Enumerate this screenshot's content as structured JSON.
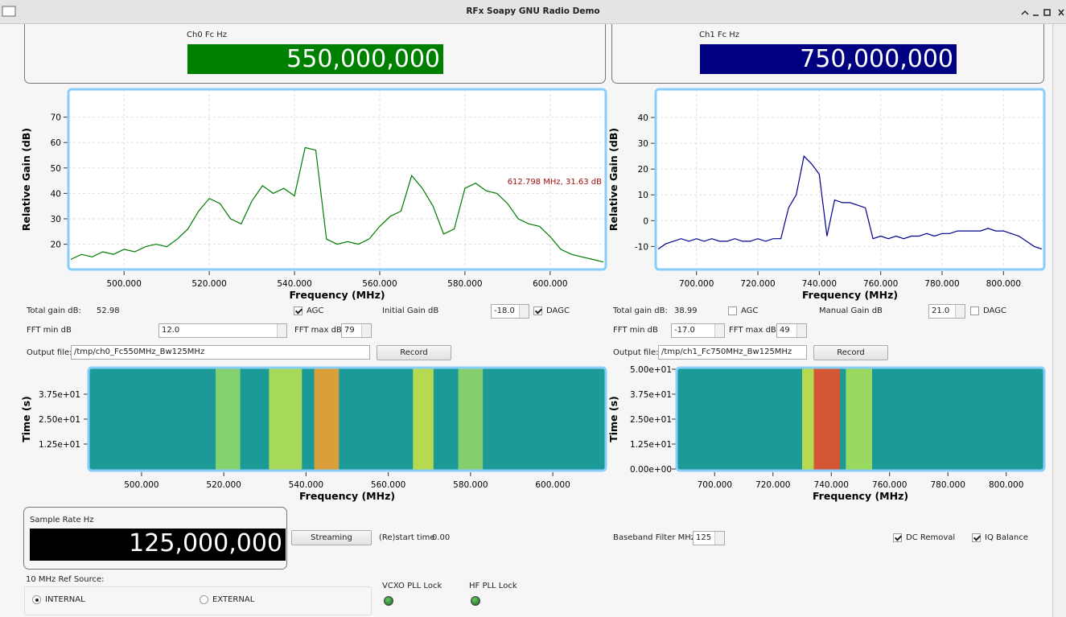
{
  "window": {
    "title": "RFx Soapy GNU Radio Demo"
  },
  "channels": [
    {
      "fc_label": "Ch0 Fc Hz",
      "fc_value": "550,000,000",
      "fc_color": "#008000",
      "total_gain_label": "Total gain dB:",
      "total_gain": "52.98",
      "agc": {
        "label": "AGC",
        "checked": true
      },
      "gain_label": "Initial Gain dB",
      "gain": "-18.0",
      "dagc": {
        "label": "DAGC",
        "checked": true
      },
      "fft_min_label": "FFT min dB",
      "fft_min": "12.0",
      "fft_max_label": "FFT max dB",
      "fft_max": "79",
      "output_label": "Output file:",
      "output_file": "/tmp/ch0_Fc550MHz_Bw125MHz",
      "record": "Record"
    },
    {
      "fc_label": "Ch1 Fc Hz",
      "fc_value": "750,000,000",
      "fc_color": "#000080",
      "total_gain_label": "Total gain dB:",
      "total_gain": "38.99",
      "agc": {
        "label": "AGC",
        "checked": false
      },
      "gain_label": "Manual Gain dB",
      "gain": "21.0",
      "dagc": {
        "label": "DAGC",
        "checked": false
      },
      "fft_min_label": "FFT min dB",
      "fft_min": "-17.0",
      "fft_max_label": "FFT max dB",
      "fft_max": "49",
      "output_label": "Output file:",
      "output_file": "/tmp/ch1_Fc750MHz_Bw125MHz",
      "record": "Record"
    }
  ],
  "sample_rate": {
    "label": "Sample Rate Hz",
    "value": "125,000,000",
    "color": "#000000"
  },
  "streaming": "Streaming",
  "restart": {
    "label": "(Re)start time",
    "value": "0.00"
  },
  "baseband": {
    "label": "Baseband Filter MHz",
    "value": "125"
  },
  "dc_removal": {
    "label": "DC Removal",
    "checked": true
  },
  "iq_balance": {
    "label": "IQ Balance",
    "checked": true
  },
  "ref_source": {
    "label": "10 MHz Ref Source:",
    "options": [
      {
        "label": "INTERNAL",
        "selected": true
      },
      {
        "label": "EXTERNAL",
        "selected": false
      }
    ]
  },
  "locks": [
    {
      "label": "VCXO PLL Lock"
    },
    {
      "label": "HF PLL Lock"
    }
  ],
  "chart_data": [
    {
      "type": "line",
      "xlabel": "Frequency (MHz)",
      "ylabel": "Relative Gain (dB)",
      "grid": true,
      "annotation": "612.798 MHz, 31.63 dB",
      "annotation_color": "#a01010",
      "xlim": [
        487.5,
        612.5
      ],
      "ylim": [
        11,
        80
      ],
      "xticks": [
        {
          "value": 500,
          "label": "500.000"
        },
        {
          "value": 520,
          "label": "520.000"
        },
        {
          "value": 540,
          "label": "540.000"
        },
        {
          "value": 560,
          "label": "560.000"
        },
        {
          "value": 580,
          "label": "580.000"
        },
        {
          "value": 600,
          "label": "600.000"
        }
      ],
      "yticks": [
        20,
        30,
        40,
        50,
        60,
        70
      ],
      "x": [
        487.5,
        490,
        492.5,
        495,
        497.5,
        500,
        502.5,
        505,
        507.5,
        510,
        512.5,
        515,
        517.5,
        520,
        522.5,
        525,
        527.5,
        530,
        532.5,
        535,
        537.5,
        540,
        542.5,
        545,
        547.5,
        550,
        552.5,
        555,
        557.5,
        560,
        562.5,
        565,
        567.5,
        570,
        572.5,
        575,
        577.5,
        580,
        582.5,
        585,
        587.5,
        590,
        592.5,
        595,
        597.5,
        600,
        602.5,
        605,
        607.5,
        610,
        612.5
      ],
      "series": [
        {
          "color": "#007a00",
          "values": [
            14,
            16,
            15,
            17,
            16,
            18,
            17,
            19,
            20,
            19,
            22,
            26,
            33,
            38,
            36,
            30,
            28,
            37,
            43,
            40,
            42,
            39,
            58,
            57,
            22,
            20,
            21,
            20,
            22,
            27,
            31,
            33,
            47,
            42,
            35,
            24,
            26,
            42,
            44,
            41,
            40,
            36,
            30,
            28,
            27,
            23,
            18,
            16,
            15,
            14,
            13
          ]
        }
      ]
    },
    {
      "type": "line",
      "xlabel": "Frequency (MHz)",
      "ylabel": "Relative Gain (dB)",
      "grid": true,
      "xlim": [
        687.5,
        812.5
      ],
      "ylim": [
        -18,
        50
      ],
      "xticks": [
        {
          "value": 700,
          "label": "700.000"
        },
        {
          "value": 720,
          "label": "720.000"
        },
        {
          "value": 740,
          "label": "740.000"
        },
        {
          "value": 760,
          "label": "760.000"
        },
        {
          "value": 780,
          "label": "780.000"
        },
        {
          "value": 800,
          "label": "800.000"
        }
      ],
      "yticks": [
        -10,
        0,
        10,
        20,
        30,
        40
      ],
      "x": [
        687.5,
        690,
        692.5,
        695,
        697.5,
        700,
        702.5,
        705,
        707.5,
        710,
        712.5,
        715,
        717.5,
        720,
        722.5,
        725,
        727.5,
        730,
        732.5,
        735,
        737.5,
        740,
        742.5,
        745,
        747.5,
        750,
        752.5,
        755,
        757.5,
        760,
        762.5,
        765,
        767.5,
        770,
        772.5,
        775,
        777.5,
        780,
        782.5,
        785,
        787.5,
        790,
        792.5,
        795,
        797.5,
        800,
        802.5,
        805,
        807.5,
        810,
        812.5
      ],
      "series": [
        {
          "color": "#00008b",
          "values": [
            -11,
            -9,
            -8,
            -7,
            -8,
            -7,
            -8,
            -7,
            -8,
            -8,
            -7,
            -8,
            -8,
            -7,
            -8,
            -7,
            -7,
            5,
            10,
            25,
            22,
            18,
            -6,
            8,
            7,
            7,
            6,
            5,
            -7,
            -6,
            -7,
            -6,
            -7,
            -6,
            -6,
            -5,
            -6,
            -5,
            -5,
            -4,
            -4,
            -4,
            -4,
            -3,
            -4,
            -4,
            -5,
            -6,
            -8,
            -10,
            -11
          ]
        }
      ]
    },
    {
      "type": "waterfall",
      "xlabel": "Frequency (MHz)",
      "ylabel": "Time (s)",
      "background": "#1c9a98",
      "xlim": [
        487.5,
        612.5
      ],
      "ylim": [
        0,
        50
      ],
      "xticks": [
        {
          "value": 500,
          "label": "500.000"
        },
        {
          "value": 520,
          "label": "520.000"
        },
        {
          "value": 540,
          "label": "540.000"
        },
        {
          "value": 560,
          "label": "560.000"
        },
        {
          "value": 580,
          "label": "580.000"
        },
        {
          "value": 600,
          "label": "600.000"
        }
      ],
      "yticks": [
        {
          "value": 12.5,
          "label": "1.25e+01"
        },
        {
          "value": 25,
          "label": "2.50e+01"
        },
        {
          "value": 37.5,
          "label": "3.75e+01"
        }
      ],
      "stripes": [
        {
          "from": 518,
          "to": 524,
          "color": "#8fd86a"
        },
        {
          "from": 531,
          "to": 539,
          "color": "#b6e050"
        },
        {
          "from": 542,
          "to": 548,
          "color": "#f0a030"
        },
        {
          "from": 566,
          "to": 571,
          "color": "#c8e048"
        },
        {
          "from": 577,
          "to": 583,
          "color": "#90d46c"
        }
      ]
    },
    {
      "type": "waterfall",
      "xlabel": "Frequency (MHz)",
      "ylabel": "Time (s)",
      "background": "#1c9a98",
      "xlim": [
        687.5,
        812.5
      ],
      "ylim": [
        0,
        50
      ],
      "xticks": [
        {
          "value": 700,
          "label": "700.000"
        },
        {
          "value": 720,
          "label": "720.000"
        },
        {
          "value": 740,
          "label": "740.000"
        },
        {
          "value": 760,
          "label": "760.000"
        },
        {
          "value": 780,
          "label": "780.000"
        },
        {
          "value": 800,
          "label": "800.000"
        }
      ],
      "yticks": [
        {
          "value": 0,
          "label": "0.00e+00"
        },
        {
          "value": 12.5,
          "label": "1.25e+01"
        },
        {
          "value": 25,
          "label": "2.50e+01"
        },
        {
          "value": 37.5,
          "label": "3.75e+01"
        },
        {
          "value": 50,
          "label": "5.00e+01"
        }
      ],
      "stripes": [
        {
          "from": 730,
          "to": 734,
          "color": "#c8e048"
        },
        {
          "from": 734,
          "to": 743,
          "color": "#e8502a"
        },
        {
          "from": 745,
          "to": 754,
          "color": "#a8e05a"
        }
      ]
    }
  ]
}
